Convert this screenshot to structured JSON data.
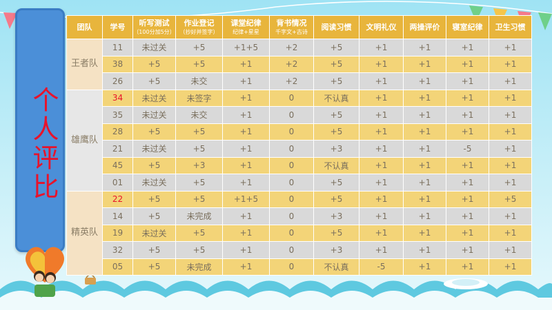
{
  "side_title": "个人评比",
  "headers": [
    {
      "main": "团队",
      "sub": ""
    },
    {
      "main": "学号",
      "sub": ""
    },
    {
      "main": "听写测试",
      "sub": "（100分加5分）"
    },
    {
      "main": "作业登记",
      "sub": "（抄好并签字）"
    },
    {
      "main": "课堂纪律",
      "sub": "纪律+星星"
    },
    {
      "main": "背书情况",
      "sub": "千字文+古诗"
    },
    {
      "main": "阅读习惯",
      "sub": ""
    },
    {
      "main": "文明礼仪",
      "sub": ""
    },
    {
      "main": "两操评价",
      "sub": ""
    },
    {
      "main": "寝室纪律",
      "sub": ""
    },
    {
      "main": "卫生习惯",
      "sub": ""
    }
  ],
  "teams": [
    {
      "name": "王者队",
      "rows": [
        {
          "id": "11",
          "cells": [
            "未过关",
            "+5",
            "+1+5",
            "+2",
            "+5",
            "+1",
            "+1",
            "+1",
            "+1"
          ]
        },
        {
          "id": "38",
          "cells": [
            "+5",
            "+5",
            "+1",
            "+2",
            "+5",
            "+1",
            "+1",
            "+1",
            "+1"
          ]
        },
        {
          "id": "26",
          "cells": [
            "+5",
            "未交",
            "+1",
            "+2",
            "+5",
            "+1",
            "+1",
            "+1",
            "+1"
          ]
        }
      ]
    },
    {
      "name": "雄鹰队",
      "rows": [
        {
          "id": "34",
          "red": true,
          "cells": [
            "未过关",
            "未签字",
            "+1",
            "0",
            "不认真",
            "+1",
            "+1",
            "+1",
            "+1"
          ]
        },
        {
          "id": "35",
          "cells": [
            "未过关",
            "未交",
            "+1",
            "0",
            "+5",
            "+1",
            "+1",
            "+1",
            "+1"
          ]
        },
        {
          "id": "28",
          "cells": [
            "+5",
            "+5",
            "+1",
            "0",
            "+5",
            "+1",
            "+1",
            "+1",
            "+1"
          ]
        },
        {
          "id": "21",
          "cells": [
            "未过关",
            "+5",
            "+1",
            "0",
            "+3",
            "+1",
            "+1",
            "-5",
            "+1"
          ]
        },
        {
          "id": "45",
          "cells": [
            "+5",
            "+3",
            "+1",
            "0",
            "不认真",
            "+1",
            "+1",
            "+1",
            "+1"
          ]
        },
        {
          "id": "01",
          "cells": [
            "未过关",
            "+5",
            "+1",
            "0",
            "+5",
            "+1",
            "+1",
            "+1",
            "+1"
          ]
        }
      ]
    },
    {
      "name": "精英队",
      "rows": [
        {
          "id": "22",
          "red": true,
          "cells": [
            "+5",
            "+5",
            "+1+5",
            "0",
            "+5",
            "+1",
            "+1",
            "+1",
            "+5"
          ]
        },
        {
          "id": "14",
          "cells": [
            "+5",
            "未完成",
            "+1",
            "0",
            "+3",
            "+1",
            "+1",
            "+1",
            "+1"
          ]
        },
        {
          "id": "19",
          "cells": [
            "未过关",
            "+5",
            "+1",
            "0",
            "+5",
            "+1",
            "+1",
            "+1",
            "+1"
          ]
        },
        {
          "id": "32",
          "cells": [
            "+5",
            "+5",
            "+1",
            "0",
            "+3",
            "+1",
            "+1",
            "+1",
            "+1"
          ]
        },
        {
          "id": "05",
          "cells": [
            "+5",
            "未完成",
            "+1",
            "0",
            "不认真",
            "-5",
            "+1",
            "+1",
            "+1"
          ]
        }
      ]
    }
  ],
  "colors": {
    "header_bg": "#e8b53c",
    "row_gray": "#d9d9d9",
    "row_yellow": "#f3d478",
    "highlight_red": "#e8132b",
    "panel_blue": "#4b8fd8"
  }
}
